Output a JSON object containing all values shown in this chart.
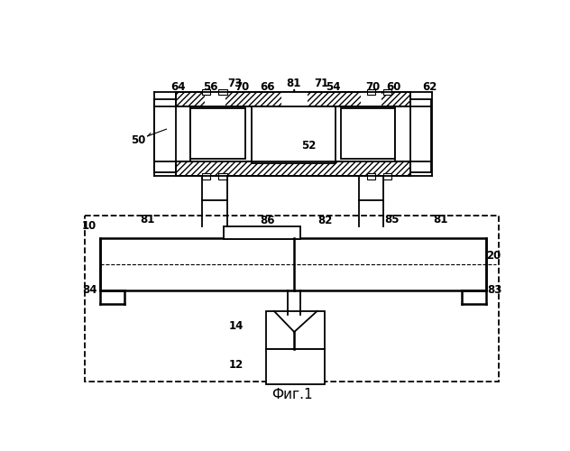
{
  "fig_label": "Фиг.1",
  "background": "#ffffff",
  "line_color": "#000000"
}
